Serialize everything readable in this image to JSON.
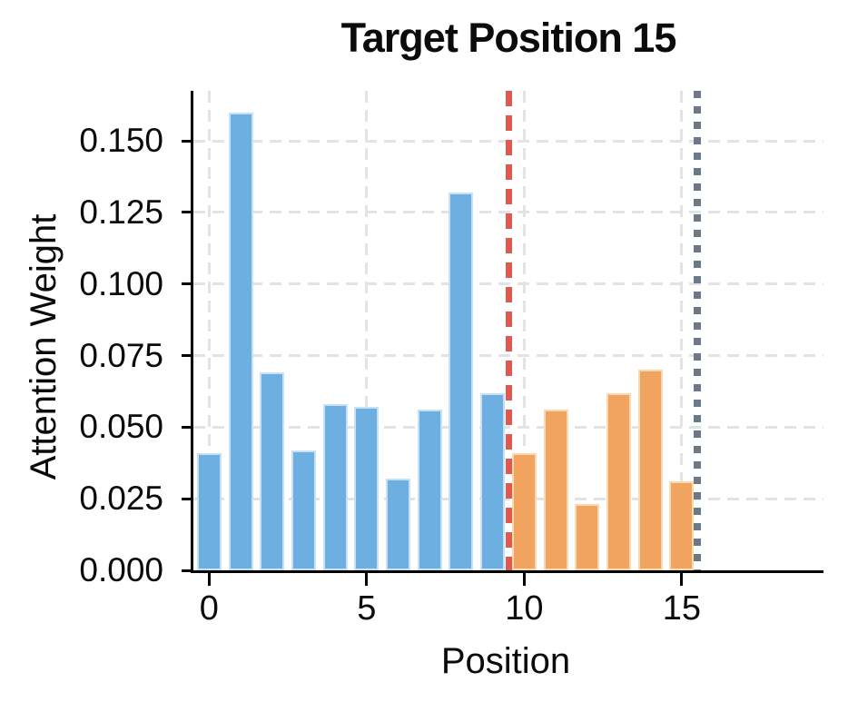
{
  "chart_data": {
    "type": "bar",
    "title": "Target Position 15",
    "xlabel": "Position",
    "ylabel": "Attention Weight",
    "categories": [
      0,
      1,
      2,
      3,
      4,
      5,
      6,
      7,
      8,
      9,
      10,
      11,
      12,
      13,
      14,
      15
    ],
    "values": [
      0.041,
      0.16,
      0.069,
      0.042,
      0.058,
      0.057,
      0.032,
      0.056,
      0.132,
      0.062,
      0.041,
      0.056,
      0.023,
      0.062,
      0.07,
      0.031
    ],
    "series": [
      {
        "name": "positions-0-9",
        "color": "#6cafe0",
        "edge_color": "#c8e0f4",
        "range": [
          0,
          9
        ]
      },
      {
        "name": "positions-10-15",
        "color": "#f1a45f",
        "edge_color": "#f8d9b0",
        "range": [
          10,
          15
        ]
      }
    ],
    "reference_lines": [
      {
        "name": "boundary-line",
        "x": 9.5,
        "style": "dashed",
        "color": "#e0584e"
      },
      {
        "name": "target-position-line",
        "x": 15.5,
        "style": "dotted",
        "color": "#6e7987"
      }
    ],
    "xticks": [
      0,
      5,
      10,
      15
    ],
    "xtick_labels": [
      "0",
      "5",
      "10",
      "15"
    ],
    "ytick_values": [
      0.0,
      0.025,
      0.05,
      0.075,
      0.1,
      0.125,
      0.15
    ],
    "ytick_labels": [
      "0.000",
      "0.025",
      "0.050",
      "0.075",
      "0.100",
      "0.125",
      "0.150"
    ],
    "xlim": [
      -0.5,
      19.5
    ],
    "ylim": [
      0,
      0.1675
    ],
    "grid": true,
    "legend": "none"
  }
}
